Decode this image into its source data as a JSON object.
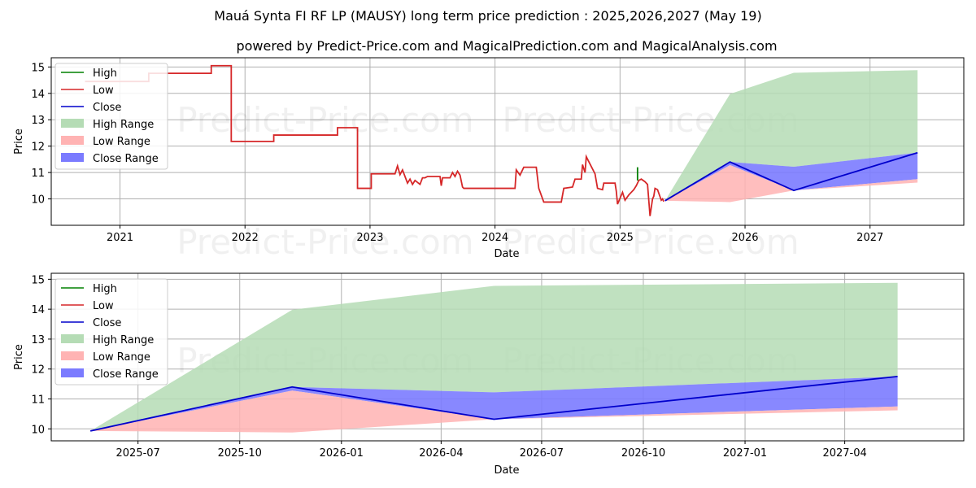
{
  "header": {
    "title": "Mauá Synta FI RF LP (MAUSY) long term price prediction : 2025,2026,2027 (May 19)",
    "subtitle": "powered by Predict-Price.com and MagicalPrediction.com and MagicalAnalysis.com"
  },
  "watermark": "Predict-Price.com",
  "legend": {
    "high": "High",
    "low": "Low",
    "close": "Close",
    "high_range": "High Range",
    "low_range": "Low Range",
    "close_range": "Close Range"
  },
  "colors": {
    "high": "#008000",
    "low": "#d62728",
    "close": "#0000cc",
    "high_range": "#b5dcb5",
    "low_range": "#ffb3b3",
    "close_range": "#7b7bff",
    "grid": "#b0b0b0"
  },
  "chart_data": [
    {
      "type": "line",
      "xlabel": "Date",
      "ylabel": "Price",
      "xlim": [
        2020.45,
        2027.75
      ],
      "ylim": [
        9.0,
        15.35
      ],
      "xticks": [
        2021,
        2022,
        2023,
        2024,
        2025,
        2026,
        2027
      ],
      "xtick_labels": [
        "2021",
        "2022",
        "2023",
        "2024",
        "2025",
        "2026",
        "2027"
      ],
      "yticks": [
        10,
        11,
        12,
        13,
        14,
        15
      ],
      "ytick_labels": [
        "10",
        "11",
        "12",
        "13",
        "14",
        "15"
      ],
      "legend_loc": "upper-left",
      "series": [
        {
          "name": "Low",
          "x": [
            2020.72,
            2021.23,
            2021.23,
            2021.73,
            2021.73,
            2021.89,
            2021.89,
            2022.23,
            2022.23,
            2022.74,
            2022.74,
            2022.9,
            2022.9,
            2023.01,
            2023.01,
            2023.2,
            2023.22,
            2023.24,
            2023.26,
            2023.3,
            2023.32,
            2023.34,
            2023.36,
            2023.4,
            2023.42,
            2023.44,
            2023.46,
            2023.56,
            2023.57,
            2023.58,
            2023.64,
            2023.66,
            2023.68,
            2023.7,
            2023.72,
            2023.74,
            2023.75,
            2023.76,
            2024.16,
            2024.17,
            2024.2,
            2024.23,
            2024.33,
            2024.35,
            2024.39,
            2024.53,
            2024.55,
            2024.62,
            2024.64,
            2024.69,
            2024.7,
            2024.72,
            2024.73,
            2024.8,
            2024.82,
            2024.86,
            2024.87,
            2024.96,
            2024.97,
            2024.98,
            2025.02,
            2025.04,
            2025.07,
            2025.11,
            2025.13,
            2025.15,
            2025.17,
            2025.2,
            2025.22,
            2025.24,
            2025.26,
            2025.27,
            2025.28,
            2025.3,
            2025.33,
            2025.34,
            2025.35
          ],
          "values": [
            14.45,
            14.45,
            14.76,
            14.76,
            15.05,
            15.05,
            12.18,
            12.18,
            12.42,
            12.42,
            12.7,
            12.7,
            10.4,
            10.4,
            10.95,
            10.95,
            11.25,
            10.92,
            11.1,
            10.6,
            10.75,
            10.55,
            10.7,
            10.55,
            10.8,
            10.8,
            10.85,
            10.85,
            10.5,
            10.8,
            10.8,
            11.0,
            10.85,
            11.05,
            10.9,
            10.45,
            10.4,
            10.4,
            10.4,
            11.1,
            10.9,
            11.2,
            11.2,
            10.4,
            9.88,
            9.88,
            10.4,
            10.45,
            10.75,
            10.75,
            11.3,
            11.0,
            11.6,
            10.95,
            10.4,
            10.35,
            10.6,
            10.6,
            10.3,
            9.8,
            10.25,
            9.95,
            10.15,
            10.35,
            10.5,
            10.7,
            10.75,
            10.65,
            10.55,
            9.35,
            10.0,
            10.1,
            10.4,
            10.35,
            9.95,
            10.0,
            9.9
          ]
        },
        {
          "name": "High",
          "x": [
            2025.14,
            2025.14
          ],
          "values": [
            10.7,
            11.2
          ]
        },
        {
          "name": "Close",
          "x": [
            2025.36,
            2025.88,
            2026.39,
            2027.38
          ],
          "values": [
            9.93,
            11.4,
            10.32,
            11.75
          ]
        },
        {
          "name": "High Range",
          "x": [
            2025.36,
            2025.88,
            2026.39,
            2027.38
          ],
          "upper": [
            9.93,
            13.98,
            14.78,
            14.88
          ],
          "lower": [
            9.93,
            11.4,
            11.22,
            11.75
          ]
        },
        {
          "name": "Close Range",
          "x": [
            2025.36,
            2025.88,
            2026.39,
            2027.38
          ],
          "upper": [
            9.93,
            11.4,
            11.22,
            11.75
          ],
          "lower": [
            9.93,
            11.28,
            10.32,
            10.75
          ]
        },
        {
          "name": "Low Range",
          "x": [
            2025.36,
            2025.88,
            2026.39,
            2027.38
          ],
          "upper": [
            9.93,
            11.28,
            10.32,
            10.75
          ],
          "lower": [
            9.93,
            9.88,
            10.32,
            10.62
          ]
        }
      ]
    },
    {
      "type": "line",
      "xlabel": "Date",
      "ylabel": "Price",
      "xlim": [
        2025.281,
        2027.542
      ],
      "ylim": [
        9.6,
        15.2
      ],
      "xticks": [
        2025.496,
        2025.748,
        2026.0,
        2026.247,
        2026.496,
        2026.748,
        2027.0,
        2027.247
      ],
      "xtick_labels": [
        "2025-07",
        "2025-10",
        "2026-01",
        "2026-04",
        "2026-07",
        "2026-10",
        "2027-01",
        "2027-04"
      ],
      "yticks": [
        10,
        11,
        12,
        13,
        14,
        15
      ],
      "ytick_labels": [
        "10",
        "11",
        "12",
        "13",
        "14",
        "15"
      ],
      "legend_loc": "upper-left",
      "series": [
        {
          "name": "High Range",
          "x": [
            2025.378,
            2025.878,
            2026.378,
            2027.378
          ],
          "upper": [
            9.93,
            13.98,
            14.78,
            14.88
          ],
          "lower": [
            9.93,
            11.4,
            11.22,
            11.75
          ]
        },
        {
          "name": "Close Range",
          "x": [
            2025.378,
            2025.878,
            2026.378,
            2027.378
          ],
          "upper": [
            9.93,
            11.4,
            11.22,
            11.75
          ],
          "lower": [
            9.93,
            11.28,
            10.32,
            10.75
          ]
        },
        {
          "name": "Low Range",
          "x": [
            2025.378,
            2025.878,
            2026.378,
            2027.378
          ],
          "upper": [
            9.93,
            11.28,
            10.32,
            10.75
          ],
          "lower": [
            9.93,
            9.88,
            10.32,
            10.62
          ]
        },
        {
          "name": "Close",
          "x": [
            2025.378,
            2025.878,
            2026.378,
            2027.378
          ],
          "values": [
            9.93,
            11.4,
            10.32,
            11.75
          ]
        }
      ]
    }
  ]
}
